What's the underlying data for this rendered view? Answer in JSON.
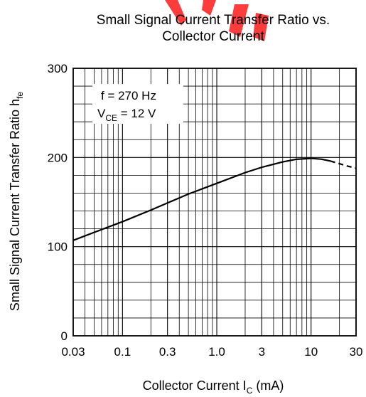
{
  "chart_data": {
    "type": "line",
    "title_lines": [
      "Small Signal Current Transfer Ratio vs.",
      "Collector Current"
    ],
    "xlabel": {
      "text": "Collector Current  I",
      "sub": "C",
      "suffix": "  (mA)"
    },
    "ylabel": {
      "text": "Small Signal Current Transfer Ratio  h",
      "sub": "fe"
    },
    "x_scale": "log",
    "xlim": [
      0.03,
      30
    ],
    "ylim": [
      0,
      300
    ],
    "x_ticks": [
      {
        "value": 0.03,
        "label": "0.03"
      },
      {
        "value": 0.1,
        "label": "0.1"
      },
      {
        "value": 0.3,
        "label": "0.3"
      },
      {
        "value": 1,
        "label": "1.0"
      },
      {
        "value": 3,
        "label": "3"
      },
      {
        "value": 10,
        "label": "10"
      },
      {
        "value": 30,
        "label": "30"
      }
    ],
    "y_ticks": [
      {
        "value": 0,
        "label": "0"
      },
      {
        "value": 100,
        "label": "100"
      },
      {
        "value": 200,
        "label": "200"
      },
      {
        "value": 300,
        "label": "300"
      }
    ],
    "grid": true,
    "annotation": {
      "line1": "f = 270 Hz",
      "line2_prefix": "V",
      "line2_sub": "CE",
      "line2_suffix": " = 12 V",
      "placement": "top-left"
    },
    "series": [
      {
        "x": [
          0.03,
          0.05,
          0.1,
          0.2,
          0.3,
          0.5,
          1,
          2,
          3,
          5,
          7,
          10,
          13,
          16
        ],
        "y": [
          107,
          116,
          128,
          141,
          149,
          159,
          171,
          183,
          189,
          195,
          198,
          199,
          198,
          196
        ],
        "style": "solid"
      },
      {
        "x": [
          16,
          20,
          25,
          30
        ],
        "y": [
          196,
          193,
          190,
          188
        ],
        "style": "dashed"
      }
    ]
  }
}
